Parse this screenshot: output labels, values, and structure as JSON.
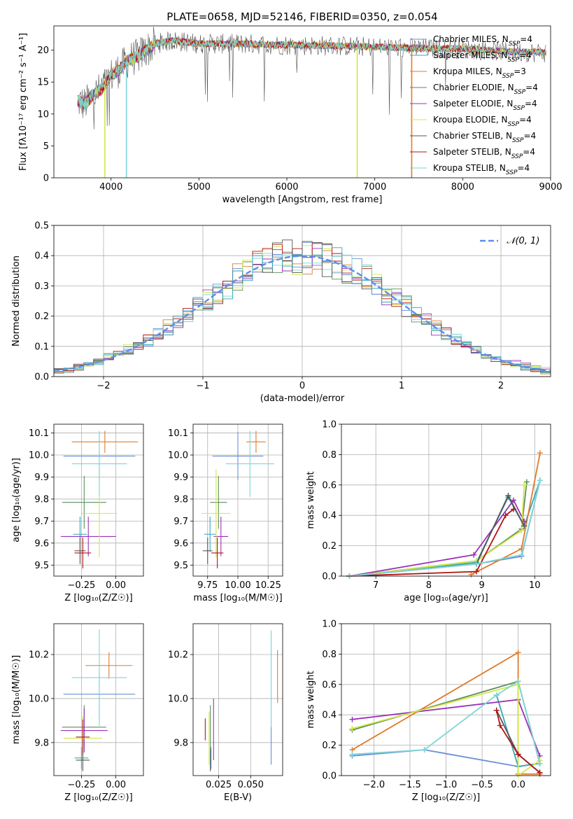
{
  "page_title": "PLATE=0658, MJD=52146, FIBERID=0350, z=0.054",
  "models": [
    {
      "name": "Chabrier MILES",
      "nssp": "4",
      "color": "#6a8fd6"
    },
    {
      "name": "Salpeter MILES",
      "nssp": "4",
      "color": "#35a7b8"
    },
    {
      "name": "Kroupa MILES",
      "nssp": "3",
      "color": "#e07b2a"
    },
    {
      "name": "Chabrier ELODIE",
      "nssp": "4",
      "color": "#5a8f5a"
    },
    {
      "name": "Salpeter ELODIE",
      "nssp": "4",
      "color": "#9b30b8"
    },
    {
      "name": "Kroupa ELODIE",
      "nssp": "4",
      "color": "#d4e64a"
    },
    {
      "name": "Chabrier STELIB",
      "nssp": "4",
      "color": "#555555"
    },
    {
      "name": "Salpeter STELIB",
      "nssp": "4",
      "color": "#b01515"
    },
    {
      "name": "Kroupa STELIB",
      "nssp": "4",
      "color": "#7fd6d6"
    }
  ],
  "chart_data": [
    {
      "id": "spectrum",
      "type": "line",
      "xlabel": "wavelength [Angstrom, rest frame]",
      "ylabel": "Flux [fλ10⁻¹⁷ erg cm⁻² s⁻¹ A⁻¹]",
      "xlim": [
        3350,
        9000
      ],
      "ylim": [
        0,
        23.8
      ],
      "xticks": [
        4000,
        5000,
        6000,
        7000,
        8000,
        9000
      ],
      "yticks": [
        0,
        5,
        10,
        15,
        20
      ],
      "continuum": [
        [
          3620,
          12
        ],
        [
          3700,
          11.5
        ],
        [
          3800,
          13
        ],
        [
          3900,
          14
        ],
        [
          3950,
          15
        ],
        [
          4000,
          16
        ],
        [
          4100,
          17
        ],
        [
          4200,
          18.5
        ],
        [
          4300,
          19
        ],
        [
          4400,
          20
        ],
        [
          4500,
          21
        ],
        [
          4700,
          21.5
        ],
        [
          5000,
          21
        ],
        [
          5500,
          21
        ],
        [
          6000,
          20.8
        ],
        [
          6500,
          20.7
        ],
        [
          7000,
          20.5
        ],
        [
          7500,
          20.3
        ],
        [
          8000,
          20.2
        ],
        [
          8500,
          19.8
        ],
        [
          8950,
          19.6
        ]
      ],
      "legend_placement": "right",
      "grid": false
    },
    {
      "id": "residuals",
      "type": "histogram",
      "xlabel": "(data-model)/error",
      "ylabel": "Normed distribution",
      "xlim": [
        -2.5,
        2.5
      ],
      "ylim": [
        0,
        0.5
      ],
      "xticks": [
        -2,
        -1,
        0,
        1,
        2
      ],
      "yticks": [
        0.0,
        0.1,
        0.2,
        0.3,
        0.4,
        0.5
      ],
      "bin_edges_start": -2.5,
      "bin_width": 0.1,
      "gaussian_label": "𝒩(0, 1)",
      "gaussian_color": "#5b8def",
      "grid": true
    },
    {
      "id": "age-vs-Z",
      "type": "errorbar",
      "xlabel": "Z [log₁₀(Z/Z☉)]",
      "ylabel": "age  [log₁₀(age/yr)]",
      "xlim": [
        -0.45,
        0.2
      ],
      "ylim": [
        9.45,
        10.14
      ],
      "xticks": [
        -0.25,
        0.0
      ],
      "yticks": [
        9.5,
        9.6,
        9.7,
        9.8,
        9.9,
        10.0,
        10.1
      ],
      "points": [
        {
          "model": 0,
          "x": -0.12,
          "xerr": 0.26,
          "y": 9.995,
          "yerr": 0.11
        },
        {
          "model": 1,
          "x": -0.26,
          "xerr": 0.05,
          "y": 9.64,
          "yerr": 0.08
        },
        {
          "model": 2,
          "x": -0.08,
          "xerr": 0.24,
          "y": 10.06,
          "yerr": 0.05
        },
        {
          "model": 3,
          "x": -0.23,
          "xerr": 0.16,
          "y": 9.785,
          "yerr": 0.12
        },
        {
          "model": 4,
          "x": -0.2,
          "xerr": 0.2,
          "y": 9.63,
          "yerr": 0.09
        },
        {
          "model": 5,
          "x": -0.12,
          "xerr": 0.13,
          "y": 9.735,
          "yerr": 0.2
        },
        {
          "model": 6,
          "x": -0.26,
          "xerr": 0.04,
          "y": 9.565,
          "yerr": 0.06
        },
        {
          "model": 7,
          "x": -0.24,
          "xerr": 0.06,
          "y": 9.555,
          "yerr": 0.07
        },
        {
          "model": 8,
          "x": -0.12,
          "xerr": 0.2,
          "y": 9.96,
          "yerr": 0.15
        }
      ],
      "grid": true
    },
    {
      "id": "age-vs-mass",
      "type": "errorbar",
      "xlabel": "mass [log₁₀(M/M☉)]",
      "ylabel": "",
      "xlim": [
        9.63,
        10.37
      ],
      "ylim": [
        9.45,
        10.14
      ],
      "xticks": [
        9.75,
        10.0,
        10.25
      ],
      "yticks": [
        9.5,
        9.6,
        9.7,
        9.8,
        9.9,
        10.0,
        10.1
      ],
      "points": [
        {
          "model": 0,
          "x": 10.0,
          "xerr": 0.21,
          "y": 9.995,
          "yerr": 0.11
        },
        {
          "model": 1,
          "x": 9.77,
          "xerr": 0.05,
          "y": 9.64,
          "yerr": 0.08
        },
        {
          "model": 2,
          "x": 10.15,
          "xerr": 0.08,
          "y": 10.06,
          "yerr": 0.05
        },
        {
          "model": 3,
          "x": 9.84,
          "xerr": 0.07,
          "y": 9.785,
          "yerr": 0.12
        },
        {
          "model": 4,
          "x": 9.86,
          "xerr": 0.06,
          "y": 9.63,
          "yerr": 0.09
        },
        {
          "model": 5,
          "x": 9.82,
          "xerr": 0.12,
          "y": 9.735,
          "yerr": 0.2
        },
        {
          "model": 6,
          "x": 9.75,
          "xerr": 0.04,
          "y": 9.565,
          "yerr": 0.06
        },
        {
          "model": 7,
          "x": 9.83,
          "xerr": 0.05,
          "y": 9.555,
          "yerr": 0.07
        },
        {
          "model": 8,
          "x": 10.1,
          "xerr": 0.2,
          "y": 9.96,
          "yerr": 0.15
        }
      ],
      "grid": true
    },
    {
      "id": "weight-vs-age",
      "type": "line",
      "xlabel": "age  [log₁₀(age/yr)]",
      "ylabel": "mass weight",
      "xlim": [
        6.35,
        10.3
      ],
      "ylim": [
        0,
        1.0
      ],
      "xticks": [
        7,
        8,
        9,
        10
      ],
      "yticks": [
        0.0,
        0.2,
        0.4,
        0.6,
        0.8,
        1.0
      ],
      "series": [
        {
          "model": 0,
          "x": [
            6.5,
            8.9,
            9.75,
            10.1
          ],
          "y": [
            0.0,
            0.08,
            0.13,
            0.63
          ]
        },
        {
          "model": 1,
          "x": [
            6.5,
            8.9,
            9.5,
            9.8,
            10.1
          ],
          "y": [
            0.0,
            0.09,
            0.52,
            0.33,
            0.63
          ]
        },
        {
          "model": 2,
          "x": [
            8.8,
            9.75,
            10.1
          ],
          "y": [
            0.01,
            0.18,
            0.81
          ]
        },
        {
          "model": 3,
          "x": [
            6.5,
            8.9,
            9.75,
            9.85
          ],
          "y": [
            0.0,
            0.1,
            0.31,
            0.62
          ]
        },
        {
          "model": 4,
          "x": [
            6.5,
            8.85,
            9.6,
            9.8
          ],
          "y": [
            0.0,
            0.14,
            0.5,
            0.36
          ]
        },
        {
          "model": 5,
          "x": [
            6.5,
            8.9,
            9.75,
            9.8
          ],
          "y": [
            0.0,
            0.1,
            0.3,
            0.6
          ]
        },
        {
          "model": 6,
          "x": [
            6.5,
            8.9,
            9.5,
            9.8
          ],
          "y": [
            0.0,
            0.08,
            0.53,
            0.33
          ]
        },
        {
          "model": 7,
          "x": [
            6.5,
            8.9,
            9.45,
            9.6
          ],
          "y": [
            0.0,
            0.03,
            0.4,
            0.44
          ]
        },
        {
          "model": 8,
          "x": [
            6.5,
            8.9,
            9.75,
            10.1
          ],
          "y": [
            0.0,
            0.08,
            0.14,
            0.63
          ]
        }
      ],
      "grid": true
    },
    {
      "id": "mass-vs-Z",
      "type": "errorbar",
      "xlabel": "Z [log₁₀(Z/Z☉)]",
      "ylabel": "mass [log₁₀(M/M☉)]",
      "xlim": [
        -0.45,
        0.2
      ],
      "ylim": [
        9.65,
        10.34
      ],
      "xticks": [
        -0.25,
        0.0
      ],
      "yticks": [
        9.8,
        10.0,
        10.2
      ],
      "points": [
        {
          "model": 0,
          "x": -0.12,
          "xerr": 0.26,
          "y": 10.02,
          "yerr": 0.12
        },
        {
          "model": 1,
          "x": -0.25,
          "xerr": 0.05,
          "y": 9.73,
          "yerr": 0.05
        },
        {
          "model": 2,
          "x": -0.05,
          "xerr": 0.17,
          "y": 10.15,
          "yerr": 0.06
        },
        {
          "model": 3,
          "x": -0.23,
          "xerr": 0.16,
          "y": 9.87,
          "yerr": 0.1
        },
        {
          "model": 4,
          "x": -0.23,
          "xerr": 0.17,
          "y": 9.855,
          "yerr": 0.1
        },
        {
          "model": 5,
          "x": -0.24,
          "xerr": 0.14,
          "y": 9.82,
          "yerr": 0.1
        },
        {
          "model": 6,
          "x": -0.24,
          "xerr": 0.05,
          "y": 9.72,
          "yerr": 0.05
        },
        {
          "model": 7,
          "x": -0.24,
          "xerr": 0.05,
          "y": 9.825,
          "yerr": 0.08
        },
        {
          "model": 8,
          "x": -0.12,
          "xerr": 0.2,
          "y": 10.095,
          "yerr": 0.22
        }
      ],
      "grid": true
    },
    {
      "id": "mass-vs-EBV",
      "type": "errorbar",
      "xlabel": "E(B-V)",
      "ylabel": "",
      "xlim": [
        0.005,
        0.075
      ],
      "ylim": [
        9.65,
        10.34
      ],
      "xticks": [
        0.025,
        0.05
      ],
      "ytick_labels": [
        "9.8",
        "10.0",
        "10.2"
      ],
      "yticks": [
        9.8,
        10.0,
        10.2
      ],
      "points": [
        {
          "model": 0,
          "x": 0.066,
          "xerr": 0,
          "y": 10.0,
          "yerr": 0.3
        },
        {
          "model": 1,
          "x": 0.019,
          "xerr": 0,
          "y": 9.73,
          "yerr": 0.05
        },
        {
          "model": 2,
          "x": 0.071,
          "xerr": 0,
          "y": 10.1,
          "yerr": 0.12
        },
        {
          "model": 3,
          "x": 0.0185,
          "xerr": 0,
          "y": 9.87,
          "yerr": 0.1
        },
        {
          "model": 4,
          "x": 0.021,
          "xerr": 0,
          "y": 9.86,
          "yerr": 0.14
        },
        {
          "model": 5,
          "x": 0.0175,
          "xerr": 0,
          "y": 9.82,
          "yerr": 0.12
        },
        {
          "model": 6,
          "x": 0.0185,
          "xerr": 0,
          "y": 9.72,
          "yerr": 0.05
        },
        {
          "model": 7,
          "x": 0.0145,
          "xerr": 0,
          "y": 9.86,
          "yerr": 0.05
        },
        {
          "model": 8,
          "x": 0.066,
          "xerr": 0,
          "y": 10.09,
          "yerr": 0.22
        }
      ],
      "grid": true
    },
    {
      "id": "weight-vs-Z",
      "type": "line",
      "xlabel": "Z [log₁₀(Z/Z☉)]",
      "ylabel": "mass weight",
      "xlim": [
        -2.45,
        0.45
      ],
      "ylim": [
        0,
        1.0
      ],
      "xticks": [
        -2.0,
        -1.5,
        -1.0,
        -0.5,
        0.0
      ],
      "yticks": [
        0.0,
        0.2,
        0.4,
        0.6,
        0.8,
        1.0
      ],
      "series": [
        {
          "model": 0,
          "x": [
            -2.3,
            -1.3,
            0.0,
            0.3
          ],
          "y": [
            0.13,
            0.17,
            0.06,
            0.08
          ]
        },
        {
          "model": 1,
          "x": [
            -0.3,
            0.0,
            0.3
          ],
          "y": [
            0.53,
            0.06,
            0.08
          ]
        },
        {
          "model": 2,
          "x": [
            -2.3,
            0.0,
            0.0,
            0.3
          ],
          "y": [
            0.17,
            0.81,
            0.01,
            0.01
          ]
        },
        {
          "model": 3,
          "x": [
            -2.3,
            0.0,
            0.3
          ],
          "y": [
            0.3,
            0.62,
            0.08
          ]
        },
        {
          "model": 4,
          "x": [
            -2.3,
            0.0,
            0.3
          ],
          "y": [
            0.37,
            0.5,
            0.13
          ]
        },
        {
          "model": 5,
          "x": [
            -2.3,
            0.0,
            0.0,
            0.3
          ],
          "y": [
            0.31,
            0.6,
            0.0,
            0.1
          ]
        },
        {
          "model": 6,
          "x": [
            -0.3,
            0.0,
            0.3
          ],
          "y": [
            0.43,
            0.14,
            0.02
          ]
        },
        {
          "model": 7,
          "x": [
            -0.3,
            -0.25,
            0.0,
            0.3
          ],
          "y": [
            0.43,
            0.33,
            0.14,
            0.02
          ]
        },
        {
          "model": 8,
          "x": [
            -2.3,
            -1.3,
            -0.3,
            0.0,
            0.3
          ],
          "y": [
            0.14,
            0.17,
            0.53,
            0.62,
            0.08
          ]
        }
      ],
      "grid": true
    }
  ]
}
